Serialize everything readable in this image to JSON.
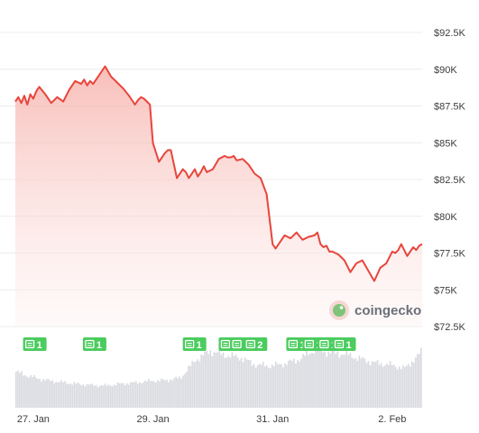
{
  "chart_data": {
    "type": "area",
    "y_axis": {
      "min": 72500,
      "max": 92500,
      "ticks": [
        72500,
        75000,
        77500,
        80000,
        82500,
        85000,
        87500,
        90000,
        92500
      ],
      "tick_labels": [
        "$72.5K",
        "$75K",
        "$77.5K",
        "$80K",
        "$82.5K",
        "$85K",
        "$87.5K",
        "$90K",
        "$92.5K"
      ],
      "position": "right",
      "grid": true
    },
    "x_axis": {
      "tick_labels": [
        "27. Jan",
        "29. Jan",
        "31. Jan",
        "2. Feb"
      ],
      "tick_positions": [
        0.3,
        2.3,
        4.3,
        6.3
      ]
    },
    "price_series": {
      "color": "#e8453c",
      "fill_top": "#f7b3ad",
      "fill_bottom": "#fdf0ef",
      "x": [
        0.0,
        0.05,
        0.1,
        0.15,
        0.2,
        0.25,
        0.3,
        0.35,
        0.4,
        0.5,
        0.6,
        0.7,
        0.8,
        0.9,
        1.0,
        1.1,
        1.15,
        1.2,
        1.25,
        1.3,
        1.4,
        1.5,
        1.6,
        1.7,
        1.8,
        1.9,
        1.95,
        2.0,
        2.05,
        2.1,
        2.15,
        2.2,
        2.25,
        2.3,
        2.4,
        2.5,
        2.55,
        2.6,
        2.7,
        2.8,
        2.85,
        2.9,
        2.95,
        3.0,
        3.05,
        3.1,
        3.15,
        3.2,
        3.3,
        3.4,
        3.5,
        3.55,
        3.6,
        3.65,
        3.7,
        3.8,
        3.9,
        4.0,
        4.1,
        4.2,
        4.3,
        4.35,
        4.4,
        4.5,
        4.6,
        4.7,
        4.8,
        4.9,
        5.0,
        5.05,
        5.1,
        5.15,
        5.2,
        5.25,
        5.3,
        5.4,
        5.5,
        5.6,
        5.7,
        5.8,
        5.9,
        6.0,
        6.1,
        6.2,
        6.3,
        6.35,
        6.4,
        6.45,
        6.5,
        6.55,
        6.6,
        6.65,
        6.7,
        6.75,
        6.8
      ],
      "y": [
        87800,
        88100,
        87700,
        88200,
        87600,
        88300,
        88000,
        88500,
        88800,
        88300,
        87700,
        88100,
        87800,
        88600,
        89200,
        89000,
        89300,
        88900,
        89200,
        89000,
        89600,
        90200,
        89500,
        89100,
        88700,
        88200,
        87900,
        87600,
        87900,
        88100,
        88000,
        87800,
        87600,
        85000,
        83700,
        84300,
        84500,
        84500,
        82600,
        83200,
        83000,
        82600,
        82900,
        83200,
        82700,
        83000,
        83400,
        83000,
        83200,
        83900,
        84100,
        84000,
        84000,
        84100,
        83800,
        83900,
        83500,
        82900,
        82600,
        81500,
        78100,
        77800,
        78100,
        78700,
        78500,
        78900,
        78400,
        78600,
        78700,
        78900,
        78100,
        77900,
        78000,
        77600,
        77600,
        77400,
        77000,
        76200,
        76800,
        77000,
        76300,
        75600,
        76500,
        76800,
        77600,
        77500,
        77700,
        78100,
        77700,
        77300,
        77600,
        77900,
        77700,
        78000,
        78100
      ]
    },
    "volume_series": {
      "color": "#d9dbe0",
      "x": [
        0.0,
        0.25,
        0.5,
        0.75,
        1.0,
        1.25,
        1.5,
        1.75,
        2.0,
        2.25,
        2.5,
        2.75,
        3.0,
        3.25,
        3.5,
        3.75,
        4.0,
        4.25,
        4.5,
        4.75,
        5.0,
        5.25,
        5.5,
        5.75,
        6.0,
        6.25,
        6.5,
        6.75,
        6.8
      ],
      "values": [
        0.6,
        0.52,
        0.46,
        0.43,
        0.4,
        0.38,
        0.37,
        0.4,
        0.42,
        0.45,
        0.46,
        0.5,
        0.8,
        0.95,
        0.88,
        0.84,
        0.72,
        0.7,
        0.74,
        0.82,
        0.98,
        0.92,
        0.9,
        0.82,
        0.75,
        0.72,
        0.66,
        0.9,
        1.0
      ]
    },
    "news_markers": [
      {
        "x": 0.28,
        "count": "1"
      },
      {
        "x": 1.28,
        "count": "1"
      },
      {
        "x": 2.95,
        "count": "1"
      },
      {
        "x": 3.55,
        "count": "1"
      },
      {
        "x": 3.74,
        "count": "1"
      },
      {
        "x": 3.97,
        "count": "2"
      },
      {
        "x": 4.68,
        "count": "1"
      },
      {
        "x": 4.95,
        "count": "1"
      },
      {
        "x": 5.2,
        "count": "1"
      },
      {
        "x": 5.45,
        "count": "1"
      }
    ],
    "news_marker_color": "#4bcc5e",
    "grid_color": "#ececec",
    "watermark": {
      "text": "coingecko",
      "icon": "coingecko-gecko-logo-icon"
    }
  }
}
